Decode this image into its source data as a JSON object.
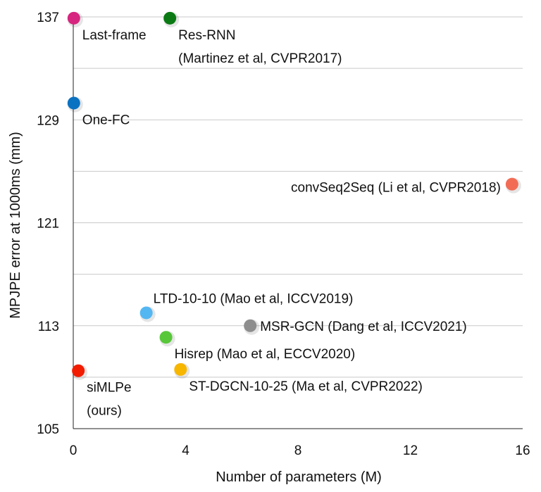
{
  "chart_data": {
    "type": "scatter",
    "title": "",
    "xlabel": "Number of parameters (M)",
    "ylabel": "MPJPE error at 1000ms (mm)",
    "xlim": [
      0,
      16
    ],
    "ylim": [
      105,
      137
    ],
    "xticks": [
      0,
      4,
      8,
      12,
      16
    ],
    "yticks": [
      105,
      113,
      121,
      129,
      137
    ],
    "grid": "horizontal",
    "points": [
      {
        "label": [
          "Last-frame"
        ],
        "x": 0.02,
        "y": 136.9,
        "color": "#d6267f",
        "label_pos": "below-right"
      },
      {
        "label": [
          "Res-RNN",
          "(Martinez et al, CVPR2017)"
        ],
        "x": 3.44,
        "y": 136.9,
        "color": "#0b7a14",
        "label_pos": "below-right"
      },
      {
        "label": [
          "One-FC"
        ],
        "x": 0.02,
        "y": 130.3,
        "color": "#0b72c2",
        "label_pos": "below-right"
      },
      {
        "label": [
          "convSeq2Seq (Li et al, CVPR2018)"
        ],
        "x": 15.62,
        "y": 124.0,
        "color": "#f26c55",
        "label_pos": "left"
      },
      {
        "label": [
          "LTD-10-10 (Mao et al, ICCV2019)"
        ],
        "x": 2.6,
        "y": 114.0,
        "color": "#55b7f2",
        "label_pos": "above-right"
      },
      {
        "label": [
          "MSR-GCN (Dang et al, ICCV2021)"
        ],
        "x": 6.3,
        "y": 113.0,
        "color": "#8e8e8e",
        "label_pos": "right"
      },
      {
        "label": [
          "Hisrep (Mao et al, ECCV2020)"
        ],
        "x": 3.3,
        "y": 112.1,
        "color": "#58c73a",
        "label_pos": "below-right"
      },
      {
        "label": [
          "ST-DGCN-10-25 (Ma et al, CVPR2022)"
        ],
        "x": 3.82,
        "y": 109.6,
        "color": "#f7b600",
        "label_pos": "below-right"
      },
      {
        "label": [
          "siMLPe",
          "(ours)"
        ],
        "x": 0.18,
        "y": 109.5,
        "color": "#f21c00",
        "label_pos": "below-right"
      }
    ]
  }
}
